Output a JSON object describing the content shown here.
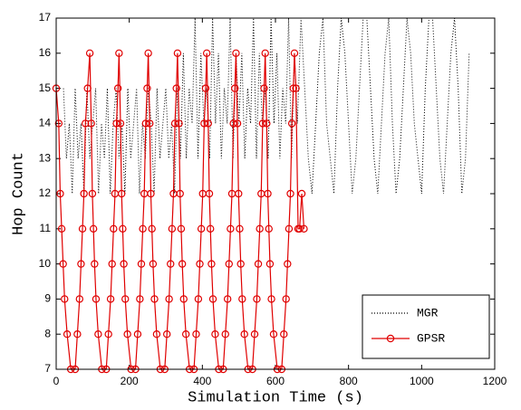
{
  "chart_data": {
    "type": "line",
    "xlabel": "Simulation Time (s)",
    "ylabel": "Hop Count",
    "xlim": [
      0,
      1200
    ],
    "xticks": [
      0,
      200,
      400,
      600,
      800,
      1000,
      1200
    ],
    "ylim": [
      7,
      17
    ],
    "yticks": [
      7,
      8,
      9,
      10,
      11,
      12,
      13,
      14,
      15,
      16,
      17
    ],
    "legend": "lower right",
    "series": [
      {
        "name": "MGR",
        "color": "#000000",
        "linestyle": "dotted",
        "x": [
          20,
          28,
          36,
          44,
          52,
          60,
          68,
          76,
          84,
          92,
          100,
          108,
          116,
          124,
          132,
          140,
          148,
          156,
          164,
          172,
          180,
          188,
          196,
          204,
          212,
          220,
          228,
          236,
          244,
          252,
          260,
          268,
          276,
          284,
          292,
          300,
          308,
          316,
          324,
          332,
          340,
          348,
          356,
          364,
          372,
          380,
          388,
          396,
          404,
          412,
          420,
          428,
          436,
          444,
          452,
          460,
          468,
          476,
          484,
          492,
          500,
          508,
          516,
          524,
          532,
          540,
          548,
          556,
          564,
          572,
          580,
          588,
          596,
          604,
          612,
          620,
          628,
          636,
          644,
          652,
          660,
          670,
          680,
          690,
          700,
          710,
          720,
          730,
          740,
          750,
          760,
          770,
          780,
          790,
          800,
          810,
          820,
          830,
          840,
          850,
          860,
          870,
          880,
          890,
          900,
          910,
          920,
          930,
          940,
          950,
          960,
          970,
          980,
          990,
          1000,
          1010,
          1020,
          1030,
          1040,
          1050,
          1060,
          1070,
          1080,
          1090,
          1100,
          1110,
          1120,
          1130
        ],
        "values": [
          15,
          13,
          14,
          12,
          15,
          13,
          14,
          12,
          15,
          13,
          14,
          15,
          12,
          14,
          13,
          15,
          12,
          14,
          15,
          13,
          14,
          12,
          15,
          13,
          14,
          15,
          12,
          14,
          13,
          15,
          14,
          12,
          15,
          13,
          14,
          15,
          13,
          14,
          12,
          15,
          13,
          16,
          13,
          15,
          14,
          17,
          13,
          16,
          14,
          15,
          13,
          17,
          14,
          16,
          13,
          15,
          14,
          17,
          13,
          16,
          14,
          16,
          13,
          15,
          14,
          17,
          13,
          16,
          14,
          15,
          13,
          17,
          14,
          16,
          13,
          15,
          14,
          17,
          13,
          16,
          14,
          17,
          15,
          13,
          12,
          14,
          16,
          17,
          14,
          13,
          12,
          15,
          17,
          16,
          14,
          12,
          13,
          15,
          17,
          17,
          15,
          13,
          12,
          14,
          16,
          17,
          14,
          12,
          13,
          15,
          17,
          16,
          14,
          13,
          12,
          15,
          17,
          17,
          15,
          13,
          12,
          14,
          16,
          17,
          15,
          12,
          13,
          16
        ]
      },
      {
        "name": "GPSR",
        "color": "#e00000",
        "linestyle": "solid",
        "marker": "circle",
        "x": [
          0,
          7,
          11,
          15,
          19,
          23,
          30,
          40,
          52,
          58,
          64,
          68,
          72,
          76,
          80,
          86,
          92,
          96,
          99,
          102,
          105,
          109,
          115,
          125,
          137,
          143,
          149,
          153,
          157,
          161,
          165,
          169,
          172,
          176,
          179,
          182,
          185,
          189,
          195,
          205,
          217,
          223,
          229,
          233,
          237,
          241,
          245,
          249,
          252,
          256,
          259,
          262,
          265,
          269,
          275,
          285,
          297,
          303,
          309,
          313,
          317,
          321,
          325,
          329,
          332,
          336,
          339,
          342,
          345,
          349,
          355,
          365,
          377,
          383,
          389,
          393,
          397,
          401,
          405,
          409,
          412,
          416,
          419,
          422,
          425,
          429,
          435,
          445,
          457,
          463,
          469,
          473,
          477,
          481,
          485,
          489,
          492,
          496,
          499,
          502,
          505,
          509,
          515,
          525,
          537,
          543,
          549,
          553,
          557,
          561,
          565,
          569,
          572,
          576,
          579,
          582,
          585,
          589,
          595,
          605,
          617,
          623,
          629,
          633,
          637,
          641,
          645,
          649,
          652,
          656,
          662,
          666,
          672,
          678
        ],
        "values": [
          15,
          14,
          12,
          11,
          10,
          9,
          8,
          7,
          7,
          8,
          9,
          10,
          11,
          12,
          14,
          15,
          16,
          14,
          12,
          11,
          10,
          9,
          8,
          7,
          7,
          8,
          9,
          10,
          11,
          12,
          14,
          15,
          16,
          14,
          12,
          11,
          10,
          9,
          8,
          7,
          7,
          8,
          9,
          10,
          11,
          12,
          14,
          15,
          16,
          14,
          12,
          11,
          10,
          9,
          8,
          7,
          7,
          8,
          9,
          10,
          11,
          12,
          14,
          15,
          16,
          14,
          12,
          11,
          10,
          9,
          8,
          7,
          7,
          8,
          9,
          10,
          11,
          12,
          14,
          15,
          16,
          14,
          12,
          11,
          10,
          9,
          8,
          7,
          7,
          8,
          9,
          10,
          11,
          12,
          14,
          15,
          16,
          14,
          12,
          11,
          10,
          9,
          8,
          7,
          7,
          8,
          9,
          10,
          11,
          12,
          14,
          15,
          16,
          14,
          12,
          11,
          10,
          9,
          8,
          7,
          7,
          8,
          9,
          10,
          11,
          12,
          14,
          15,
          16,
          15,
          11,
          11,
          12,
          11
        ]
      }
    ]
  }
}
